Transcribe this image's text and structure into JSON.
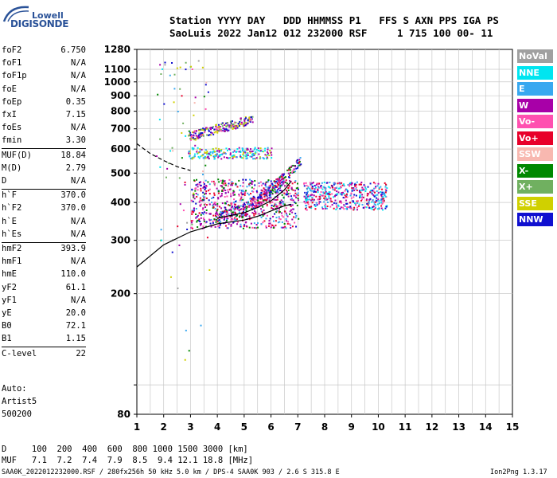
{
  "logo": {
    "line1": "Lowell",
    "line2": "DIGISONDE"
  },
  "header": {
    "line1": "Station YYYY DAY   DDD HHMMSS P1   FFS S AXN PPS IGA PS",
    "line2": "SaoLuis 2022 Jan12 012 232000 RSF     1 715 100 00- 11"
  },
  "params": [
    {
      "label": "foF2",
      "value": "6.750"
    },
    {
      "label": "foF1",
      "value": "N/A"
    },
    {
      "label": "foF1p",
      "value": "N/A"
    },
    {
      "label": "foE",
      "value": "N/A"
    },
    {
      "label": "foEp",
      "value": "0.35"
    },
    {
      "label": "fxI",
      "value": "7.15"
    },
    {
      "label": "foEs",
      "value": "N/A"
    },
    {
      "label": "fmin",
      "value": "3.30"
    },
    {
      "label": "MUF(D)",
      "value": "18.84"
    },
    {
      "label": "M(D)",
      "value": "2.79"
    },
    {
      "label": "D",
      "value": "N/A"
    },
    {
      "label": "h`F",
      "value": "370.0"
    },
    {
      "label": "h`F2",
      "value": "370.0"
    },
    {
      "label": "h`E",
      "value": "N/A"
    },
    {
      "label": "h`Es",
      "value": "N/A"
    },
    {
      "label": "hmF2",
      "value": "393.9"
    },
    {
      "label": "hmF1",
      "value": "N/A"
    },
    {
      "label": "hmE",
      "value": "110.0"
    },
    {
      "label": "yF2",
      "value": "61.1"
    },
    {
      "label": "yF1",
      "value": "N/A"
    },
    {
      "label": "yE",
      "value": "20.0"
    },
    {
      "label": "B0",
      "value": "72.1"
    },
    {
      "label": "B1",
      "value": "1.15"
    },
    {
      "label": "C-level",
      "value": "22"
    }
  ],
  "auto": {
    "line1": "Auto:",
    "line2": "Artist5",
    "line3": "500200"
  },
  "legend": [
    {
      "label": "NoVal",
      "color": "#a0a0a0"
    },
    {
      "label": "NNE",
      "color": "#00e5f0"
    },
    {
      "label": "E",
      "color": "#38a8f0"
    },
    {
      "label": "W",
      "color": "#a800a8"
    },
    {
      "label": "Vo-",
      "color": "#ff50b0"
    },
    {
      "label": "Vo+",
      "color": "#e8002a"
    },
    {
      "label": "SSW",
      "color": "#f8b8b0"
    },
    {
      "label": "X-",
      "color": "#008800"
    },
    {
      "label": "X+",
      "color": "#70b060"
    },
    {
      "label": "SSE",
      "color": "#d0d000"
    },
    {
      "label": "NNW",
      "color": "#1010d0"
    }
  ],
  "footer": {
    "d_row": "D     100  200  400  600  800 1000 1500 3000 [km]",
    "muf_row": "MUF   7.1  7.2  7.4  7.9  8.5  9.4 12.1 18.8 [MHz]",
    "file_info": "SAA0K_2022012232000.RSF / 280fx256h 50 kHz 5.0 km / DPS-4 SAA0K 903 / 2.6 S 315.8 E",
    "version": "Ion2Png 1.3.17"
  },
  "chart_data": {
    "type": "scatter",
    "xlabel": "",
    "ylabel": "",
    "xlim": [
      1,
      15
    ],
    "ylim": [
      80,
      1280
    ],
    "y_scale": "log",
    "x_ticks": [
      1,
      2,
      3,
      4,
      5,
      6,
      7,
      8,
      9,
      10,
      11,
      12,
      13,
      14,
      15
    ],
    "y_ticks": [
      80,
      100,
      200,
      300,
      400,
      500,
      600,
      700,
      800,
      900,
      1000,
      1100,
      1280
    ],
    "y_tick_labels": [
      "80",
      "",
      "200",
      "300",
      "400",
      "500",
      "600",
      "700",
      "800",
      "900",
      "1000",
      "1100",
      "1280"
    ],
    "grid": true,
    "legend_position": "right",
    "traces": [
      {
        "name": "F2 O-trace",
        "color": "#ff50b0",
        "freq_range": [
          3.0,
          7.0
        ],
        "height_range": [
          330,
          480
        ]
      },
      {
        "name": "F2 X-trace",
        "color": "#008800",
        "freq_range": [
          3.8,
          7.1
        ],
        "height_range": [
          340,
          560
        ]
      },
      {
        "name": "second hop",
        "color": "#d0d000",
        "freq_range": [
          2.9,
          5.3
        ],
        "height_range": [
          660,
          760
        ]
      },
      {
        "name": "second hop E",
        "color": "#00e5f0",
        "freq_range": [
          2.9,
          6.0
        ],
        "height_range": [
          560,
          610
        ]
      },
      {
        "name": "spread F",
        "color": "#38a8f0",
        "freq_range": [
          7.2,
          10.3
        ],
        "height_range": [
          380,
          470
        ]
      }
    ],
    "profile_curve": {
      "freq": [
        1.0,
        2.0,
        3.0,
        4.0,
        5.0,
        5.5,
        6.0,
        6.5,
        6.75
      ],
      "height": [
        245,
        290,
        320,
        340,
        350,
        360,
        375,
        390,
        394
      ]
    },
    "dashed_curve": {
      "freq": [
        1.0,
        1.5,
        2.0,
        2.5,
        3.0
      ],
      "height": [
        625,
        580,
        550,
        525,
        510
      ]
    },
    "upper_curve": {
      "freq": [
        4.0,
        5.0,
        5.5,
        6.0,
        6.5,
        6.75
      ],
      "height": [
        355,
        370,
        385,
        405,
        440,
        470
      ]
    }
  }
}
